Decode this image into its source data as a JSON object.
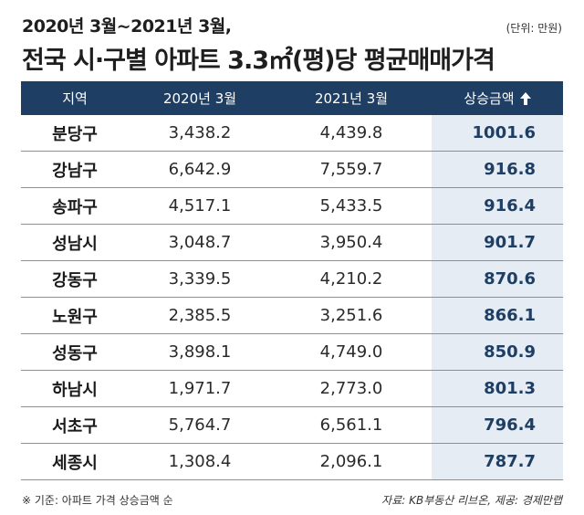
{
  "header": {
    "title_line1": "2020년 3월~2021년 3월,",
    "title_line2": "전국 시·구별 아파트 3.3㎡(평)당 평균매매가격",
    "unit": "(단위: 만원)"
  },
  "chart_data": {
    "type": "table",
    "columns": [
      "지역",
      "2020년 3월",
      "2021년 3월",
      "상승금액"
    ],
    "sort_indicator": "arrow-up-icon",
    "rows": [
      {
        "region": "분당구",
        "mar2020": "3,438.2",
        "mar2021": "4,439.8",
        "increase": "1001.6"
      },
      {
        "region": "강남구",
        "mar2020": "6,642.9",
        "mar2021": "7,559.7",
        "increase": "916.8"
      },
      {
        "region": "송파구",
        "mar2020": "4,517.1",
        "mar2021": "5,433.5",
        "increase": "916.4"
      },
      {
        "region": "성남시",
        "mar2020": "3,048.7",
        "mar2021": "3,950.4",
        "increase": "901.7"
      },
      {
        "region": "강동구",
        "mar2020": "3,339.5",
        "mar2021": "4,210.2",
        "increase": "870.6"
      },
      {
        "region": "노원구",
        "mar2020": "2,385.5",
        "mar2021": "3,251.6",
        "increase": "866.1"
      },
      {
        "region": "성동구",
        "mar2020": "3,898.1",
        "mar2021": "4,749.0",
        "increase": "850.9"
      },
      {
        "region": "하남시",
        "mar2020": "1,971.7",
        "mar2021": "2,773.0",
        "increase": "801.3"
      },
      {
        "region": "서초구",
        "mar2020": "5,764.7",
        "mar2021": "6,561.1",
        "increase": "796.4"
      },
      {
        "region": "세종시",
        "mar2020": "1,308.4",
        "mar2021": "2,096.1",
        "increase": "787.7"
      }
    ]
  },
  "footer": {
    "note": "※ 기준: 아파트 가격 상승금액 순",
    "source": "자료: KB부동산 리브온, 제공: 경제만랩"
  },
  "colors": {
    "header_bg": "#1f3e63",
    "highlight_bg": "#e6ecf3",
    "highlight_text": "#1f3e63"
  }
}
